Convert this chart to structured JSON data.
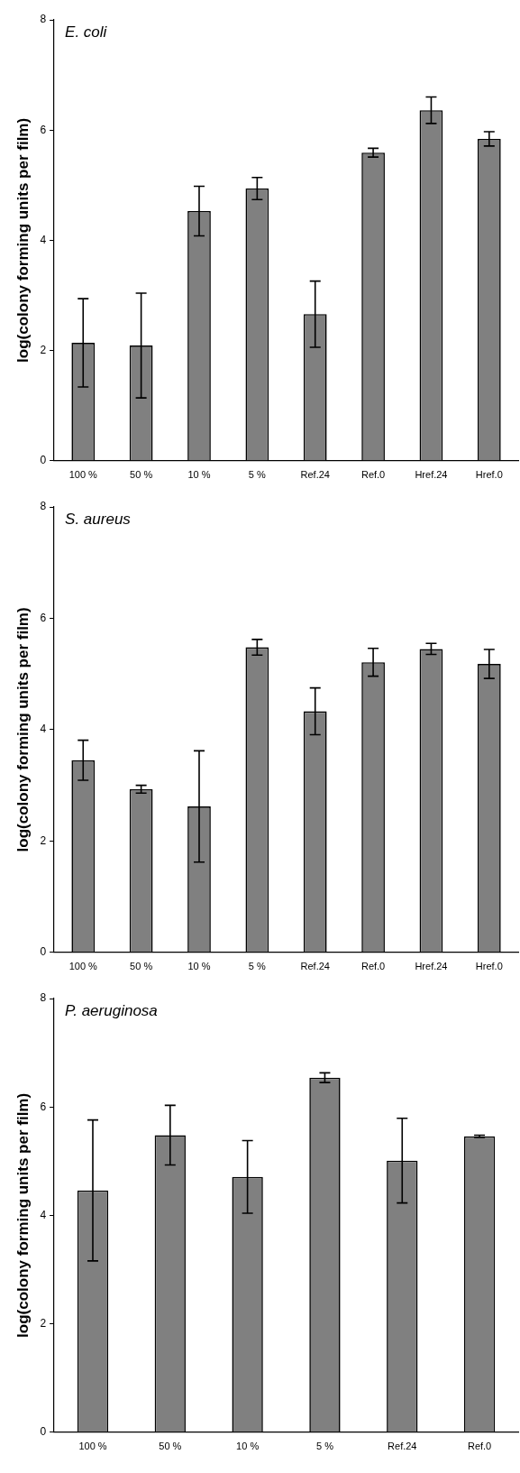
{
  "chart_data": [
    {
      "type": "bar",
      "title": "E. coli",
      "ylabel": "log(colony forming units per film)",
      "categories": [
        "100 %",
        "50 %",
        "10 %",
        "5 %",
        "Ref.24",
        "Ref.0",
        "Href.24",
        "Href.0"
      ],
      "values": [
        2.14,
        2.09,
        4.53,
        4.94,
        2.66,
        5.59,
        6.36,
        5.84
      ],
      "errors": [
        0.8,
        0.95,
        0.45,
        0.2,
        0.6,
        0.08,
        0.24,
        0.13
      ],
      "color": "#808080",
      "ylim": [
        0,
        8
      ],
      "yticks": [
        0,
        2,
        4,
        6,
        8
      ],
      "grid": false,
      "legend": false
    },
    {
      "type": "bar",
      "title": "S. aureus",
      "ylabel": "log(colony forming units per film)",
      "categories": [
        "100 %",
        "50 %",
        "10 %",
        "5 %",
        "Ref.24",
        "Ref.0",
        "Href.24",
        "Href.0"
      ],
      "values": [
        3.45,
        2.93,
        2.62,
        5.48,
        4.33,
        5.21,
        5.45,
        5.18
      ],
      "errors": [
        0.36,
        0.07,
        1.0,
        0.14,
        0.42,
        0.25,
        0.1,
        0.26
      ],
      "color": "#808080",
      "ylim": [
        0,
        8
      ],
      "yticks": [
        0,
        2,
        4,
        6,
        8
      ],
      "grid": false,
      "legend": false
    },
    {
      "type": "bar",
      "title": "P. aeruginosa",
      "ylabel": "log(colony forming units per film)",
      "categories": [
        "100 %",
        "50 %",
        "10 %",
        "5 %",
        "Ref.24",
        "Ref.0"
      ],
      "values": [
        4.46,
        5.48,
        4.71,
        6.54,
        5.01,
        5.46
      ],
      "errors": [
        1.3,
        0.55,
        0.67,
        0.09,
        0.78,
        0.02
      ],
      "color": "#808080",
      "ylim": [
        0,
        8
      ],
      "yticks": [
        0,
        2,
        4,
        6,
        8
      ],
      "grid": false,
      "legend": false
    }
  ]
}
